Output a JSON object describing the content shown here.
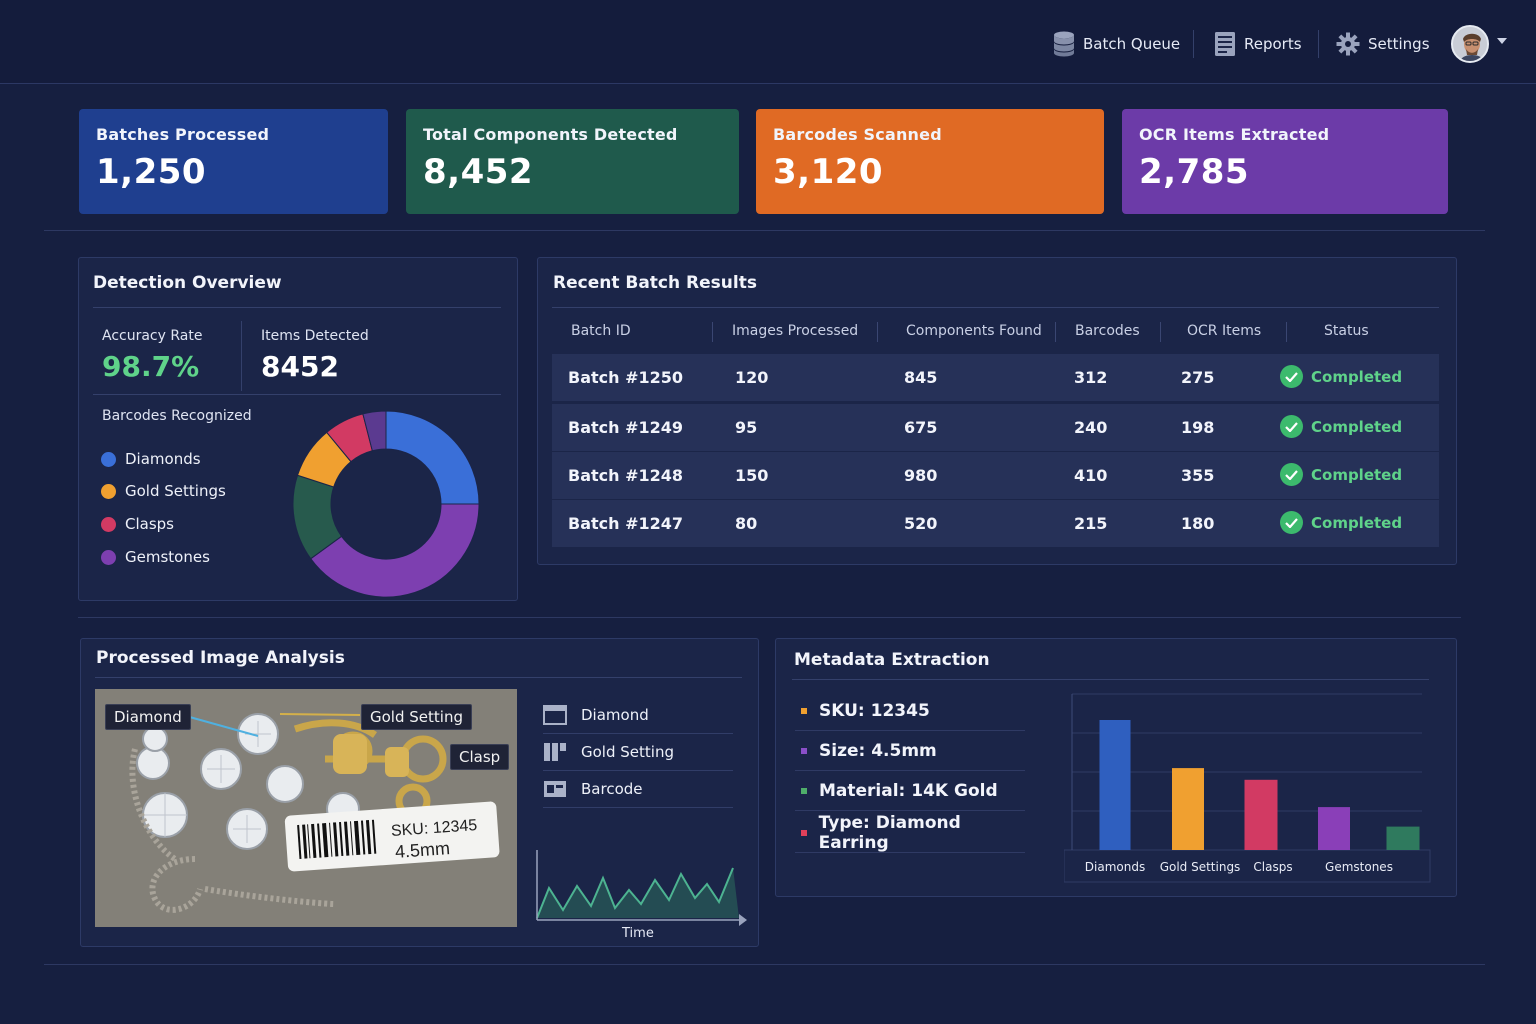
{
  "nav": {
    "batch_queue": "Batch Queue",
    "reports": "Reports",
    "settings": "Settings"
  },
  "kpis": [
    {
      "title": "Batches Processed",
      "value": "1,250",
      "color": "#1f3f8f"
    },
    {
      "title": "Total Components Detected",
      "value": "8,452",
      "color": "#1f5a4c"
    },
    {
      "title": "Barcodes Scanned",
      "value": "3,120",
      "color": "#e06a24"
    },
    {
      "title": "OCR Items Extracted",
      "value": "2,785",
      "color": "#6c3ba8"
    }
  ],
  "detection": {
    "title": "Detection Overview",
    "accuracy_label": "Accuracy Rate",
    "accuracy_value": "98.7%",
    "items_label": "Items Detected",
    "items_value": "8452",
    "barcodes_label": "Barcodes Recognized",
    "legend": [
      {
        "label": "Diamonds",
        "color": "#3a6fd8"
      },
      {
        "label": "Gold Settings",
        "color": "#f0a030"
      },
      {
        "label": "Clasps",
        "color": "#d23a63"
      },
      {
        "label": "Gemstones",
        "color": "#7d3fb0"
      }
    ],
    "donut": [
      {
        "name": "Diamonds",
        "share": 0.25,
        "color": "#3a6fd8"
      },
      {
        "name": "Gemstones",
        "share": 0.4,
        "color": "#7d3fb0"
      },
      {
        "name": "Teal",
        "share": 0.15,
        "color": "#275a4d"
      },
      {
        "name": "Gold Settings",
        "share": 0.09,
        "color": "#f0a030"
      },
      {
        "name": "Clasps",
        "share": 0.07,
        "color": "#d23a63"
      },
      {
        "name": "Purple",
        "share": 0.04,
        "color": "#5b3a90"
      }
    ]
  },
  "batches": {
    "title": "Recent Batch Results",
    "headers": [
      "Batch ID",
      "Images Processed",
      "Components Found",
      "Barcodes",
      "OCR Items",
      "Status"
    ],
    "rows": [
      {
        "id": "Batch #1250",
        "images": "120",
        "components": "845",
        "barcodes": "312",
        "ocr": "275",
        "status": "Completed"
      },
      {
        "id": "Batch #1249",
        "images": "95",
        "components": "675",
        "barcodes": "240",
        "ocr": "198",
        "status": "Completed"
      },
      {
        "id": "Batch #1248",
        "images": "150",
        "components": "980",
        "barcodes": "410",
        "ocr": "355",
        "status": "Completed"
      },
      {
        "id": "Batch #1247",
        "images": "80",
        "components": "520",
        "barcodes": "215",
        "ocr": "180",
        "status": "Completed"
      }
    ]
  },
  "image_analysis": {
    "title": "Processed Image Analysis",
    "tags": {
      "diamond": "Diamond",
      "gold": "Gold Setting",
      "clasp": "Clasp"
    },
    "label_sku": "SKU: 12345",
    "label_size": "4.5mm",
    "list": [
      "Diamond",
      "Gold Setting",
      "Barcode"
    ],
    "time_label": "Time"
  },
  "metadata": {
    "title": "Metadata Extraction",
    "items": [
      {
        "text": "SKU: 12345",
        "color": "#f0a030"
      },
      {
        "text": "Size: 4.5mm",
        "color": "#8a4fc8"
      },
      {
        "text": "Material: 14K Gold",
        "color": "#4fae6a"
      },
      {
        "text": "Type: Diamond Earring",
        "color": "#e0405a"
      }
    ]
  },
  "chart_data": {
    "type": "bar",
    "categories": [
      "Diamonds",
      "Gold Settings",
      "Clasps",
      "Gemstones",
      ""
    ],
    "values": [
      100,
      63,
      54,
      33,
      18
    ],
    "colors": [
      "#2f5fbf",
      "#f0a030",
      "#d23a63",
      "#8a3fb8",
      "#2f7a5e"
    ],
    "ylim": [
      0,
      120
    ],
    "grid": true
  }
}
